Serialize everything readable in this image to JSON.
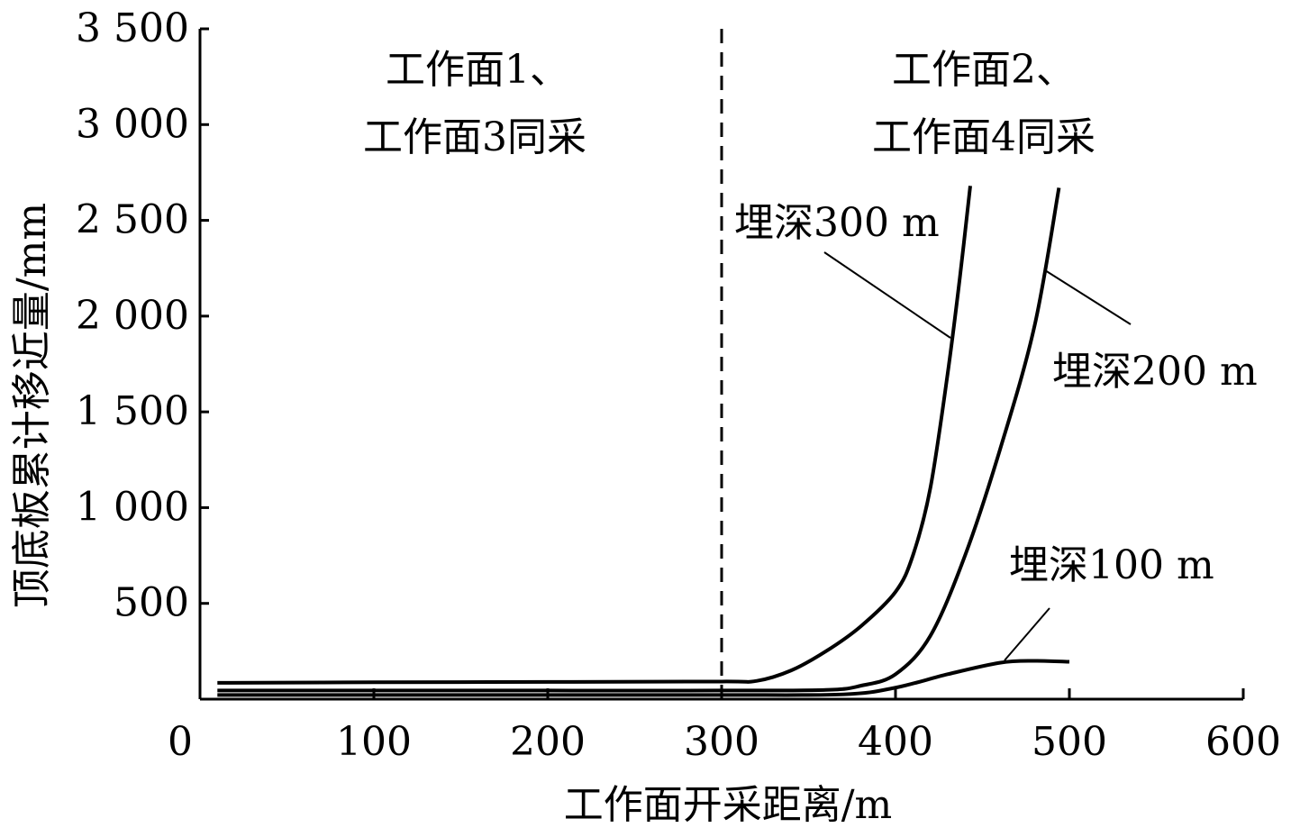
{
  "chart_data": {
    "type": "line",
    "xlabel": "工作面开采距离/m",
    "ylabel": "顶底板累计移近量/mm",
    "xlim": [
      0,
      600
    ],
    "ylim": [
      0,
      3500
    ],
    "x_ticks": [
      "0",
      "100",
      "200",
      "300",
      "400",
      "500",
      "600"
    ],
    "y_ticks": [
      "500",
      "1 000",
      "1 500",
      "2 000",
      "2 500",
      "3 000",
      "3 500"
    ],
    "y_tick_values": [
      500,
      1000,
      1500,
      2000,
      2500,
      3000,
      3500
    ],
    "x_tick_values": [
      0,
      100,
      200,
      300,
      400,
      500,
      600
    ],
    "grid": false,
    "divider_x": 300,
    "regions": [
      {
        "line1": "工作面1、",
        "line2": "工作面3同采"
      },
      {
        "line1": "工作面2、",
        "line2": "工作面4同采"
      }
    ],
    "series": [
      {
        "name": "埋深300 m",
        "x": [
          10,
          100,
          200,
          300,
          320,
          340,
          360,
          380,
          400,
          410,
          420,
          430,
          437,
          443
        ],
        "y": [
          85,
          88,
          90,
          92,
          95,
          150,
          250,
          380,
          560,
          750,
          1100,
          1700,
          2200,
          2680
        ]
      },
      {
        "name": "埋深200 m",
        "x": [
          10,
          100,
          200,
          300,
          360,
          380,
          400,
          420,
          440,
          460,
          480,
          494
        ],
        "y": [
          45,
          45,
          45,
          45,
          48,
          70,
          130,
          330,
          750,
          1300,
          1950,
          2670
        ]
      },
      {
        "name": "埋深100 m",
        "x": [
          10,
          100,
          200,
          300,
          370,
          400,
          430,
          460,
          480,
          500
        ],
        "y": [
          22,
          22,
          22,
          22,
          25,
          60,
          130,
          190,
          200,
          195
        ]
      }
    ]
  }
}
